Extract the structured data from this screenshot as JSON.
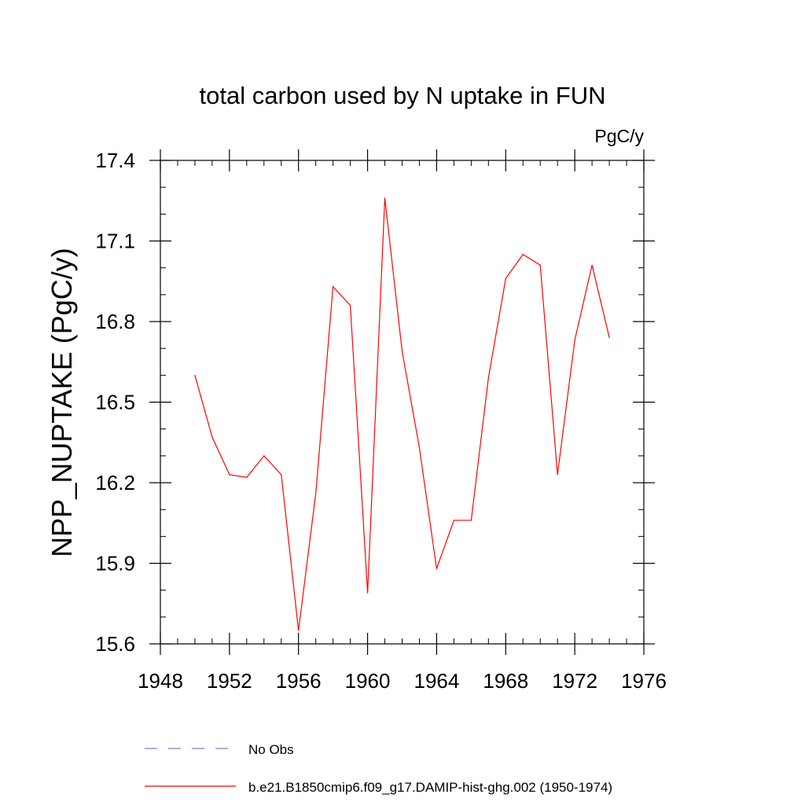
{
  "chart_data": {
    "type": "line",
    "title": "total carbon used by N uptake in FUN",
    "units_label": "PgC/y",
    "ylabel": "NPP_NUPTAKE  (PgC/y)",
    "xlabel": "",
    "xlim": [
      1948,
      1976
    ],
    "ylim": [
      15.6,
      17.4
    ],
    "x_ticks": [
      1948,
      1952,
      1956,
      1960,
      1964,
      1968,
      1972,
      1976
    ],
    "y_ticks": [
      15.6,
      15.9,
      16.2,
      16.5,
      16.8,
      17.1,
      17.4
    ],
    "x_tick_labels": [
      "1948",
      "1952",
      "1956",
      "1960",
      "1964",
      "1968",
      "1972",
      "1976"
    ],
    "y_tick_labels": [
      "15.6",
      "15.9",
      "16.2",
      "16.5",
      "16.8",
      "17.1",
      "17.4"
    ],
    "grid": false,
    "legend_position": "bottom",
    "series": [
      {
        "name": "No Obs",
        "color": "#7f7fd0",
        "style": "dashed",
        "x": [],
        "values": []
      },
      {
        "name": "b.e21.B1850cmip6.f09_g17.DAMIP-hist-ghg.002 (1950-1974)",
        "color": "#ff0000",
        "style": "solid",
        "x": [
          1950,
          1951,
          1952,
          1953,
          1954,
          1955,
          1956,
          1957,
          1958,
          1959,
          1960,
          1961,
          1962,
          1963,
          1964,
          1965,
          1966,
          1967,
          1968,
          1969,
          1970,
          1971,
          1972,
          1973,
          1974
        ],
        "values": [
          16.6,
          16.37,
          16.23,
          16.22,
          16.3,
          16.23,
          15.65,
          16.16,
          16.93,
          16.86,
          15.79,
          17.26,
          16.69,
          16.33,
          15.88,
          16.06,
          16.06,
          16.59,
          16.96,
          17.05,
          17.01,
          16.23,
          16.73,
          17.01,
          16.74
        ]
      }
    ]
  }
}
